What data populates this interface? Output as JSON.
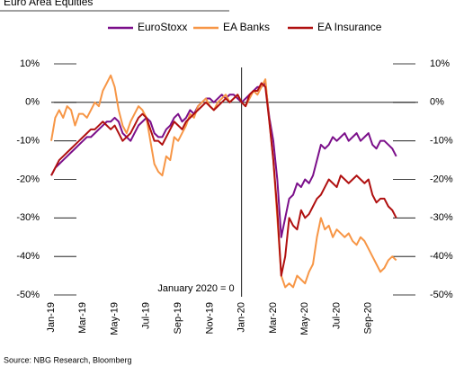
{
  "chart_data": {
    "type": "line",
    "title": "Euro Area Equities",
    "source": "Source: NBG Research, Bloomberg",
    "annotation": {
      "text": "January 2020 = 0",
      "x": 48
    },
    "categories": [
      "Jan-19",
      null,
      null,
      null,
      null,
      null,
      null,
      null,
      "Mar-19",
      null,
      null,
      null,
      null,
      null,
      null,
      null,
      "May-19",
      null,
      null,
      null,
      null,
      null,
      null,
      null,
      "Jul-19",
      null,
      null,
      null,
      null,
      null,
      null,
      null,
      "Sep-19",
      null,
      null,
      null,
      null,
      null,
      null,
      null,
      "Nov-19",
      null,
      null,
      null,
      null,
      null,
      null,
      null,
      "Jan-20",
      null,
      null,
      null,
      null,
      null,
      null,
      null,
      "Mar-20",
      null,
      null,
      null,
      null,
      null,
      null,
      null,
      "May-20",
      null,
      null,
      null,
      null,
      null,
      null,
      null,
      "Jul-20",
      null,
      null,
      null,
      null,
      null,
      null,
      null,
      "Sep-20",
      null,
      null,
      null,
      null,
      null,
      null,
      null
    ],
    "series": [
      {
        "name": "EuroStoxx",
        "color": "#7b0f8a",
        "values": [
          -19,
          -17,
          -16,
          -15,
          -14,
          -13,
          -12,
          -11,
          -10,
          -9,
          -9,
          -8,
          -7,
          -6,
          -5,
          -5,
          -4,
          -5,
          -8,
          -9,
          -10,
          -8,
          -6,
          -5,
          -4,
          -5,
          -8,
          -9,
          -9,
          -7,
          -6,
          -4,
          -3,
          -5,
          -4,
          -2,
          -3,
          -1,
          0,
          1,
          1,
          0,
          1,
          2,
          1,
          2,
          2,
          1,
          0,
          1,
          2,
          3,
          4,
          4,
          5,
          -4,
          -10,
          -20,
          -35,
          -30,
          -25,
          -24,
          -21,
          -22,
          -20,
          -21,
          -19,
          -15,
          -11,
          -12,
          -11,
          -9,
          -10,
          -9,
          -8,
          -10,
          -9,
          -8,
          -10,
          -9,
          -8,
          -11,
          -12,
          -10,
          -10,
          -11,
          -12,
          -14
        ]
      },
      {
        "name": "EA Banks",
        "color": "#f79646",
        "values": [
          -10,
          -4,
          -2,
          -4,
          -1,
          -2,
          -6,
          -3,
          -3,
          -4,
          -2,
          0,
          -1,
          3,
          5,
          7,
          4,
          -2,
          -6,
          -8,
          -5,
          -3,
          -1,
          -2,
          -4,
          -10,
          -16,
          -18,
          -19,
          -14,
          -15,
          -9,
          -10,
          -8,
          -6,
          -3,
          -4,
          -1,
          0,
          1,
          -1,
          -2,
          0,
          1,
          2,
          0,
          1,
          2,
          0,
          -1,
          1,
          3,
          2,
          4,
          6,
          -5,
          -15,
          -30,
          -45,
          -48,
          -47,
          -48,
          -45,
          -46,
          -47,
          -44,
          -42,
          -35,
          -30,
          -33,
          -32,
          -35,
          -33,
          -34,
          -35,
          -34,
          -36,
          -37,
          -35,
          -36,
          -38,
          -40,
          -42,
          -44,
          -43,
          -41,
          -40,
          -41
        ]
      },
      {
        "name": "EA Insurance",
        "color": "#b01010",
        "values": [
          -19,
          -17,
          -15,
          -14,
          -13,
          -12,
          -11,
          -10,
          -9,
          -8,
          -7,
          -7,
          -6,
          -5,
          -6,
          -7,
          -6,
          -8,
          -10,
          -9,
          -8,
          -6,
          -4,
          -3,
          -4,
          -7,
          -10,
          -10,
          -11,
          -9,
          -7,
          -5,
          -6,
          -7,
          -5,
          -4,
          -3,
          -2,
          -1,
          0,
          -1,
          -2,
          -1,
          0,
          1,
          0,
          1,
          2,
          0,
          -1,
          2,
          3,
          3,
          5,
          4,
          -5,
          -15,
          -28,
          -45,
          -40,
          -30,
          -32,
          -33,
          -28,
          -30,
          -29,
          -27,
          -25,
          -24,
          -22,
          -20,
          -21,
          -22,
          -19,
          -20,
          -21,
          -20,
          -19,
          -20,
          -21,
          -20,
          -24,
          -26,
          -25,
          -25,
          -27,
          -28,
          -30
        ]
      }
    ],
    "ylim": [
      -50,
      10
    ],
    "yticks": [
      {
        "value": -50,
        "label": "-50%"
      },
      {
        "value": -40,
        "label": "-40%"
      },
      {
        "value": -30,
        "label": "-30%"
      },
      {
        "value": -20,
        "label": "-20%"
      },
      {
        "value": -10,
        "label": "-10%"
      },
      {
        "value": 0,
        "label": "0%"
      },
      {
        "value": 10,
        "label": "10%"
      }
    ],
    "y2lim": [
      -50,
      10
    ],
    "y2ticks": [
      {
        "value": -50,
        "label": "-50%"
      },
      {
        "value": -40,
        "label": "-40%"
      },
      {
        "value": -30,
        "label": "-30%"
      },
      {
        "value": -20,
        "label": "-20%"
      },
      {
        "value": -10,
        "label": "-10%"
      },
      {
        "value": 0,
        "label": "0%"
      },
      {
        "value": 10,
        "label": "10%"
      }
    ]
  }
}
